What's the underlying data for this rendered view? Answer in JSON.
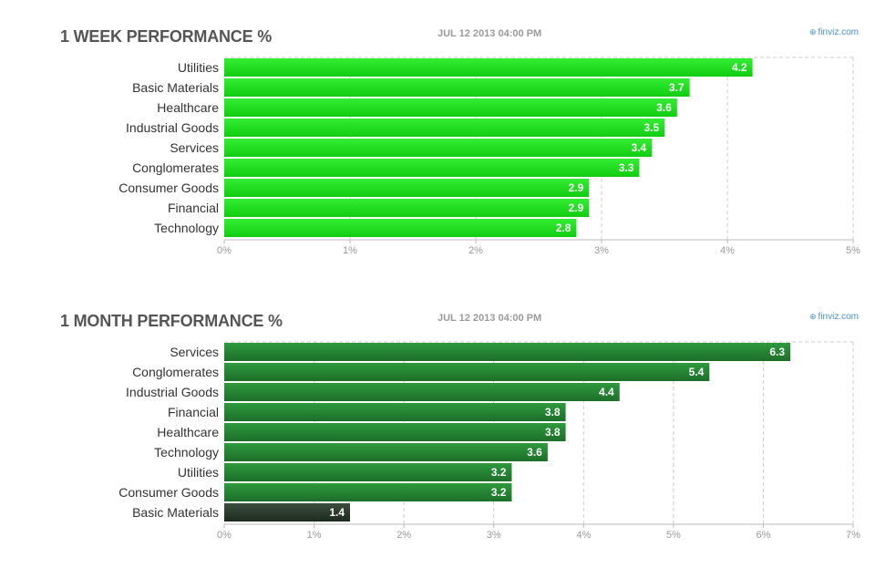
{
  "source_credit": "finviz.com",
  "colors": {
    "week_bar_light": "#33ee33",
    "week_bar_dark": "#11cc11",
    "month_bar_light": "#2e9a3e",
    "month_bar_dark": "#1d6e2a",
    "month_bar_weak_light": "#3d4e3f",
    "month_bar_weak_dark": "#1d2a1f",
    "grid": "#cccccc",
    "title": "#555555"
  },
  "chart_data": [
    {
      "type": "bar",
      "orientation": "horizontal",
      "title": "1 WEEK PERFORMANCE %",
      "timestamp": "JUL 12 2013 04:00 PM",
      "categories": [
        "Utilities",
        "Basic Materials",
        "Healthcare",
        "Industrial Goods",
        "Services",
        "Conglomerates",
        "Consumer Goods",
        "Financial",
        "Technology"
      ],
      "values": [
        4.2,
        3.7,
        3.6,
        3.5,
        3.4,
        3.3,
        2.9,
        2.9,
        2.8
      ],
      "value_labels": [
        "4.2",
        "3.7",
        "3.6",
        "3.5",
        "3.4",
        "3.3",
        "2.9",
        "2.9",
        "2.8"
      ],
      "xlim": [
        0,
        5
      ],
      "ticks": [
        "0%",
        "1%",
        "2%",
        "3%",
        "4%",
        "5%"
      ],
      "grid": true
    },
    {
      "type": "bar",
      "orientation": "horizontal",
      "title": "1 MONTH PERFORMANCE %",
      "timestamp": "JUL 12 2013 04:00 PM",
      "categories": [
        "Services",
        "Conglomerates",
        "Industrial Goods",
        "Financial",
        "Healthcare",
        "Technology",
        "Utilities",
        "Consumer Goods",
        "Basic Materials"
      ],
      "values": [
        6.3,
        5.4,
        4.4,
        3.8,
        3.8,
        3.6,
        3.2,
        3.2,
        1.4
      ],
      "value_labels": [
        "6.3",
        "5.4",
        "4.4",
        "3.8",
        "3.8",
        "3.6",
        "3.2",
        "3.2",
        "1.4"
      ],
      "xlim": [
        0,
        7
      ],
      "ticks": [
        "0%",
        "1%",
        "2%",
        "3%",
        "4%",
        "5%",
        "6%",
        "7%"
      ],
      "grid": true
    }
  ]
}
